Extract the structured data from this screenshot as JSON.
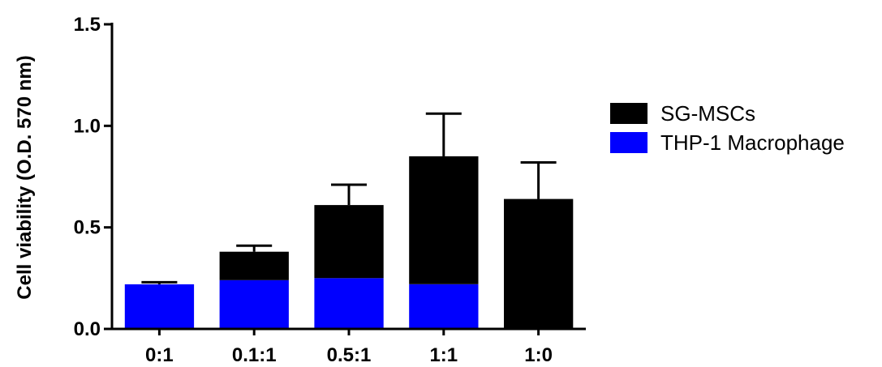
{
  "chart_data": {
    "type": "bar",
    "stacked": true,
    "categories": [
      "0:1",
      "0.1:1",
      "0.5:1",
      "1:1",
      "1:0"
    ],
    "series": [
      {
        "name": "THP-1 Macrophage",
        "color": "#0000ff",
        "values": [
          0.22,
          0.24,
          0.25,
          0.22,
          0.0
        ]
      },
      {
        "name": "SG-MSCs",
        "color": "#000000",
        "values": [
          0.0,
          0.14,
          0.36,
          0.63,
          0.64
        ]
      }
    ],
    "totals": [
      0.22,
      0.38,
      0.61,
      0.85,
      0.64
    ],
    "error_bar_tops": [
      0.23,
      0.41,
      0.71,
      1.06,
      0.82
    ],
    "ylabel": "Cell viability (O.D. 570 nm)",
    "xlabel": "",
    "ylim": [
      0,
      1.5
    ],
    "yticks": [
      "0.0",
      "0.5",
      "1.0",
      "1.5"
    ],
    "grid": false,
    "legend_position": "right",
    "legend_order": [
      "SG-MSCs",
      "THP-1 Macrophage"
    ]
  }
}
